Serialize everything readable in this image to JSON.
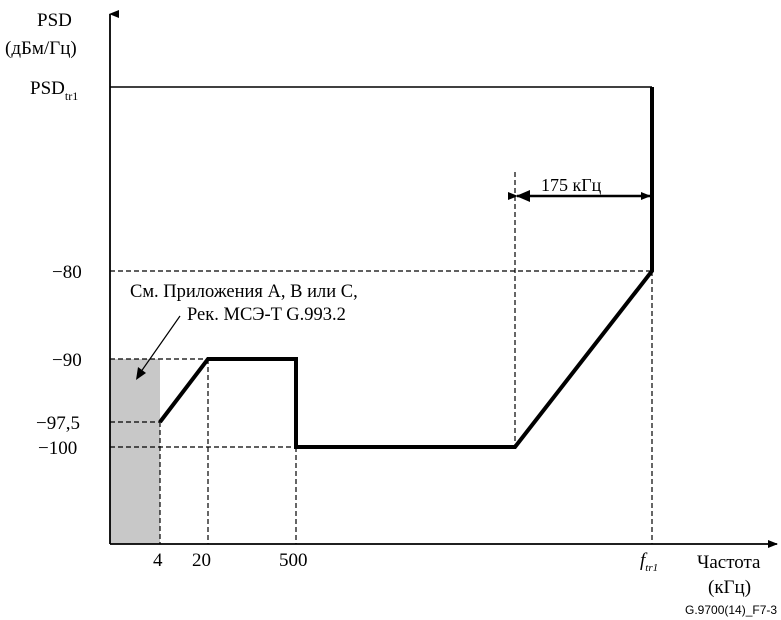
{
  "y_axis": {
    "title_line1": "PSD",
    "title_line2": "(дБм/Гц)",
    "psd_label_main": "PSD",
    "psd_label_sub": "tr1",
    "tick_labels": [
      "−80",
      "−90",
      "−97,5",
      "−100"
    ]
  },
  "x_axis": {
    "title_line1": "Частота",
    "title_line2": "(кГц)",
    "tick_labels": [
      "4",
      "20",
      "500"
    ],
    "ftr1_main": "f",
    "ftr1_sub": "tr1"
  },
  "annotations": {
    "bandwidth": "175 кГц",
    "note_line1": "См. Приложения A, B или C,",
    "note_line2": "Рек. МСЭ-T G.993.2"
  },
  "figure_id": "G.9700(14)_F7-3",
  "colors": {
    "shaded_region": "#c8c8c8",
    "line": "#000000"
  }
}
